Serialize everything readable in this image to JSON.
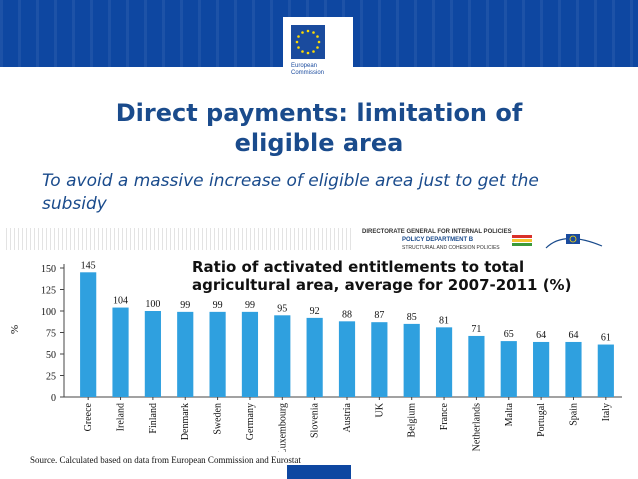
{
  "header": {
    "logo_line1": "European",
    "logo_line2": "Commission"
  },
  "slide": {
    "title_line1": "Direct payments: limitation of",
    "title_line2": "eligible area",
    "subtitle": "To avoid a massive increase of eligible area just to get the subsidy"
  },
  "figure_header": {
    "dg_text": "DIRECTORATE GENERAL FOR INTERNAL POLICIES",
    "department": "POLICY DEPARTMENT B",
    "department_sub": "STRUCTURAL AND COHESION POLICIES"
  },
  "chart_data": {
    "type": "bar",
    "title_line1": "Ratio of activated entitlements to total",
    "title_line2": "agricultural area, average for 2007-2011 (%)",
    "ylabel": "%",
    "xlabel": "",
    "categories": [
      "Greece",
      "Ireland",
      "Finland",
      "Denmark",
      "Sweden",
      "Germany",
      "Luxembourg",
      "Slovenia",
      "Austria",
      "UK",
      "Belgium",
      "France",
      "Netherlands",
      "Malta",
      "Portugal",
      "Spain",
      "Italy"
    ],
    "values": [
      145,
      104,
      100,
      99,
      99,
      99,
      95,
      92,
      88,
      87,
      85,
      81,
      71,
      65,
      64,
      64,
      61
    ],
    "yticks": [
      0,
      25,
      50,
      75,
      100,
      125,
      150
    ],
    "ylim": [
      0,
      150
    ],
    "bar_color": "#2fa0df",
    "grid": false,
    "legend": "none",
    "source": "Source. Calculated based on data from European Commission and Eurostat"
  },
  "colors": {
    "banner": "#0e47a1",
    "title": "#1a4b8c"
  }
}
